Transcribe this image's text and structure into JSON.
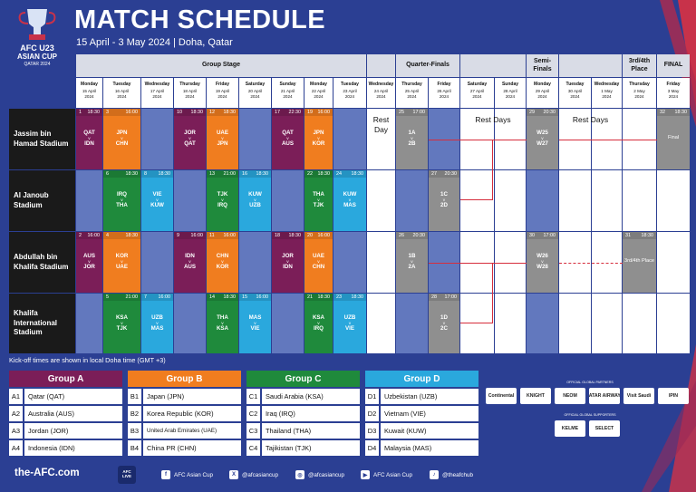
{
  "header": {
    "logo_text": "AFC U23 ASIAN CUP QATAR 2024",
    "title": "MATCH SCHEDULE",
    "subtitle": "15 April - 3 May 2024 | Doha, Qatar"
  },
  "stages": {
    "group": "Group Stage",
    "quarter": "Quarter-Finals",
    "semi": "Semi-Finals",
    "third": "3rd/4th Place",
    "final": "FINAL"
  },
  "days": [
    {
      "wd": "Monday",
      "d": "15 April",
      "y": "2024"
    },
    {
      "wd": "Tuesday",
      "d": "16 April",
      "y": "2024"
    },
    {
      "wd": "Wednesday",
      "d": "17 April",
      "y": "2024"
    },
    {
      "wd": "Thursday",
      "d": "18 April",
      "y": "2024"
    },
    {
      "wd": "Friday",
      "d": "19 April",
      "y": "2024"
    },
    {
      "wd": "Saturday",
      "d": "20 April",
      "y": "2024"
    },
    {
      "wd": "Sunday",
      "d": "21 April",
      "y": "2024"
    },
    {
      "wd": "Monday",
      "d": "22 April",
      "y": "2024"
    },
    {
      "wd": "Tuesday",
      "d": "23 April",
      "y": "2024"
    },
    {
      "wd": "Wednesday",
      "d": "24 April",
      "y": "2024"
    },
    {
      "wd": "Thursday",
      "d": "25 April",
      "y": "2024"
    },
    {
      "wd": "Friday",
      "d": "26 April",
      "y": "2024"
    },
    {
      "wd": "Saturday",
      "d": "27 April",
      "y": "2024"
    },
    {
      "wd": "Sunday",
      "d": "28 April",
      "y": "2024"
    },
    {
      "wd": "Monday",
      "d": "29 April",
      "y": "2024"
    },
    {
      "wd": "Tuesday",
      "d": "30 April",
      "y": "2024"
    },
    {
      "wd": "Wednesday",
      "d": "1 May",
      "y": "2024"
    },
    {
      "wd": "Thursday",
      "d": "2 May",
      "y": "2024"
    },
    {
      "wd": "Friday",
      "d": "3 May",
      "y": "2024"
    }
  ],
  "venues": [
    "Jassim bin Hamad Stadium",
    "Al Janoub Stadium",
    "Abdullah bin Khalifa Stadium",
    "Khalifa International Stadium"
  ],
  "matches": [
    {
      "no": "1",
      "time": "18:30",
      "t1": "QAT",
      "t2": "IDN",
      "g": "a",
      "day": 0,
      "ven": 0
    },
    {
      "no": "3",
      "time": "16:00",
      "t1": "JPN",
      "t2": "CHN",
      "g": "b",
      "day": 1,
      "ven": 0
    },
    {
      "no": "10",
      "time": "18:30",
      "t1": "JOR",
      "t2": "QAT",
      "g": "a",
      "day": 3,
      "ven": 0
    },
    {
      "no": "12",
      "time": "18:30",
      "t1": "UAE",
      "t2": "JPN",
      "g": "b",
      "day": 4,
      "ven": 0
    },
    {
      "no": "17",
      "time": "22:30",
      "t1": "QAT",
      "t2": "AUS",
      "g": "a",
      "day": 6,
      "ven": 0
    },
    {
      "no": "19",
      "time": "16:00",
      "t1": "JPN",
      "t2": "KOR",
      "g": "b",
      "day": 7,
      "ven": 0
    },
    {
      "no": "6",
      "time": "18:30",
      "t1": "IRQ",
      "t2": "THA",
      "g": "c",
      "day": 1,
      "ven": 1
    },
    {
      "no": "8",
      "time": "18:30",
      "t1": "VIE",
      "t2": "KUW",
      "g": "d",
      "day": 2,
      "ven": 1
    },
    {
      "no": "13",
      "time": "21:00",
      "t1": "TJK",
      "t2": "IRQ",
      "g": "c",
      "day": 4,
      "ven": 1
    },
    {
      "no": "16",
      "time": "18:30",
      "t1": "KUW",
      "t2": "UZB",
      "g": "d",
      "day": 5,
      "ven": 1
    },
    {
      "no": "22",
      "time": "18:30",
      "t1": "THA",
      "t2": "TJK",
      "g": "c",
      "day": 7,
      "ven": 1
    },
    {
      "no": "24",
      "time": "18:30",
      "t1": "KUW",
      "t2": "MAS",
      "g": "d",
      "day": 8,
      "ven": 1
    },
    {
      "no": "2",
      "time": "16:00",
      "t1": "AUS",
      "t2": "JOR",
      "g": "a",
      "day": 0,
      "ven": 2
    },
    {
      "no": "4",
      "time": "18:30",
      "t1": "KOR",
      "t2": "UAE",
      "g": "b",
      "day": 1,
      "ven": 2
    },
    {
      "no": "9",
      "time": "16:00",
      "t1": "IDN",
      "t2": "AUS",
      "g": "a",
      "day": 3,
      "ven": 2
    },
    {
      "no": "11",
      "time": "16:00",
      "t1": "CHN",
      "t2": "KOR",
      "g": "b",
      "day": 4,
      "ven": 2
    },
    {
      "no": "18",
      "time": "18:30",
      "t1": "JOR",
      "t2": "IDN",
      "g": "a",
      "day": 6,
      "ven": 2
    },
    {
      "no": "20",
      "time": "16:00",
      "t1": "UAE",
      "t2": "CHN",
      "g": "b",
      "day": 7,
      "ven": 2
    },
    {
      "no": "5",
      "time": "21:00",
      "t1": "KSA",
      "t2": "TJK",
      "g": "c",
      "day": 1,
      "ven": 3
    },
    {
      "no": "7",
      "time": "16:00",
      "t1": "UZB",
      "t2": "MAS",
      "g": "d",
      "day": 2,
      "ven": 3
    },
    {
      "no": "14",
      "time": "18:30",
      "t1": "THA",
      "t2": "KSA",
      "g": "c",
      "day": 4,
      "ven": 3
    },
    {
      "no": "15",
      "time": "16:00",
      "t1": "MAS",
      "t2": "VIE",
      "g": "d",
      "day": 5,
      "ven": 3
    },
    {
      "no": "21",
      "time": "18:30",
      "t1": "KSA",
      "t2": "IRQ",
      "g": "c",
      "day": 7,
      "ven": 3
    },
    {
      "no": "23",
      "time": "18:30",
      "t1": "UZB",
      "t2": "VIE",
      "g": "d",
      "day": 8,
      "ven": 3
    }
  ],
  "knockouts": [
    {
      "no": "25",
      "time": "17:00",
      "t1": "1A",
      "t2": "2B",
      "day": 10,
      "ven": 0
    },
    {
      "no": "27",
      "time": "20:30",
      "t1": "1C",
      "t2": "2D",
      "day": 11,
      "ven": 1
    },
    {
      "no": "26",
      "time": "20:30",
      "t1": "1B",
      "t2": "2A",
      "day": 10,
      "ven": 2
    },
    {
      "no": "28",
      "time": "17:00",
      "t1": "1D",
      "t2": "2C",
      "day": 11,
      "ven": 3
    },
    {
      "no": "29",
      "time": "20:30",
      "t1": "W25",
      "t2": "W27",
      "day": 14,
      "ven": 0
    },
    {
      "no": "30",
      "time": "17:00",
      "t1": "W26",
      "t2": "W28",
      "day": 14,
      "ven": 2
    },
    {
      "no": "31",
      "time": "18:30",
      "label": "3rd/4th Place",
      "day": 17,
      "ven": 2
    },
    {
      "no": "32",
      "time": "18:30",
      "label": "Final",
      "day": 18,
      "ven": 0
    }
  ],
  "rest": {
    "day": "Rest Day",
    "days": "Rest Days"
  },
  "vs": "v",
  "note": "Kick-off times are shown in local Doha time (GMT +3)",
  "groups": [
    {
      "name": "Group A",
      "color": "#7b1e58",
      "teams": [
        {
          "code": "A1",
          "name": "Qatar (QAT)"
        },
        {
          "code": "A2",
          "name": "Australia (AUS)"
        },
        {
          "code": "A3",
          "name": "Jordan (JOR)"
        },
        {
          "code": "A4",
          "name": "Indonesia (IDN)"
        }
      ]
    },
    {
      "name": "Group B",
      "color": "#f07d1f",
      "teams": [
        {
          "code": "B1",
          "name": "Japan (JPN)"
        },
        {
          "code": "B2",
          "name": "Korea Republic (KOR)"
        },
        {
          "code": "B3",
          "name": "United Arab Emirates (UAE)"
        },
        {
          "code": "B4",
          "name": "China PR (CHN)"
        }
      ]
    },
    {
      "name": "Group C",
      "color": "#1f8a3c",
      "teams": [
        {
          "code": "C1",
          "name": "Saudi Arabia (KSA)"
        },
        {
          "code": "C2",
          "name": "Iraq (IRQ)"
        },
        {
          "code": "C3",
          "name": "Thailand (THA)"
        },
        {
          "code": "C4",
          "name": "Tajikistan (TJK)"
        }
      ]
    },
    {
      "name": "Group D",
      "color": "#2aa8dd",
      "teams": [
        {
          "code": "D1",
          "name": "Uzbekistan (UZB)"
        },
        {
          "code": "D2",
          "name": "Vietnam (VIE)"
        },
        {
          "code": "D3",
          "name": "Kuwait (KUW)"
        },
        {
          "code": "D4",
          "name": "Malaysia (MAS)"
        }
      ]
    }
  ],
  "sponsors": {
    "partners_title": "OFFICIAL GLOBAL PARTNERS",
    "supporters_title": "OFFICIAL GLOBAL SUPPORTERS",
    "partners": [
      "Continental",
      "KNIGHT",
      "NEOM",
      "QATAR AIRWAYS",
      "Visit Saudi",
      "IPIN"
    ],
    "supporters": [
      "KELME",
      "SELECT"
    ]
  },
  "footer": {
    "site": "the-AFC.com",
    "live": "AFC LIVE",
    "facebook": "AFC Asian Cup",
    "x": "@afcasiancup",
    "instagram": "@afcasiancup",
    "youtube": "AFC Asian Cup",
    "tiktok": "@theafchub"
  }
}
